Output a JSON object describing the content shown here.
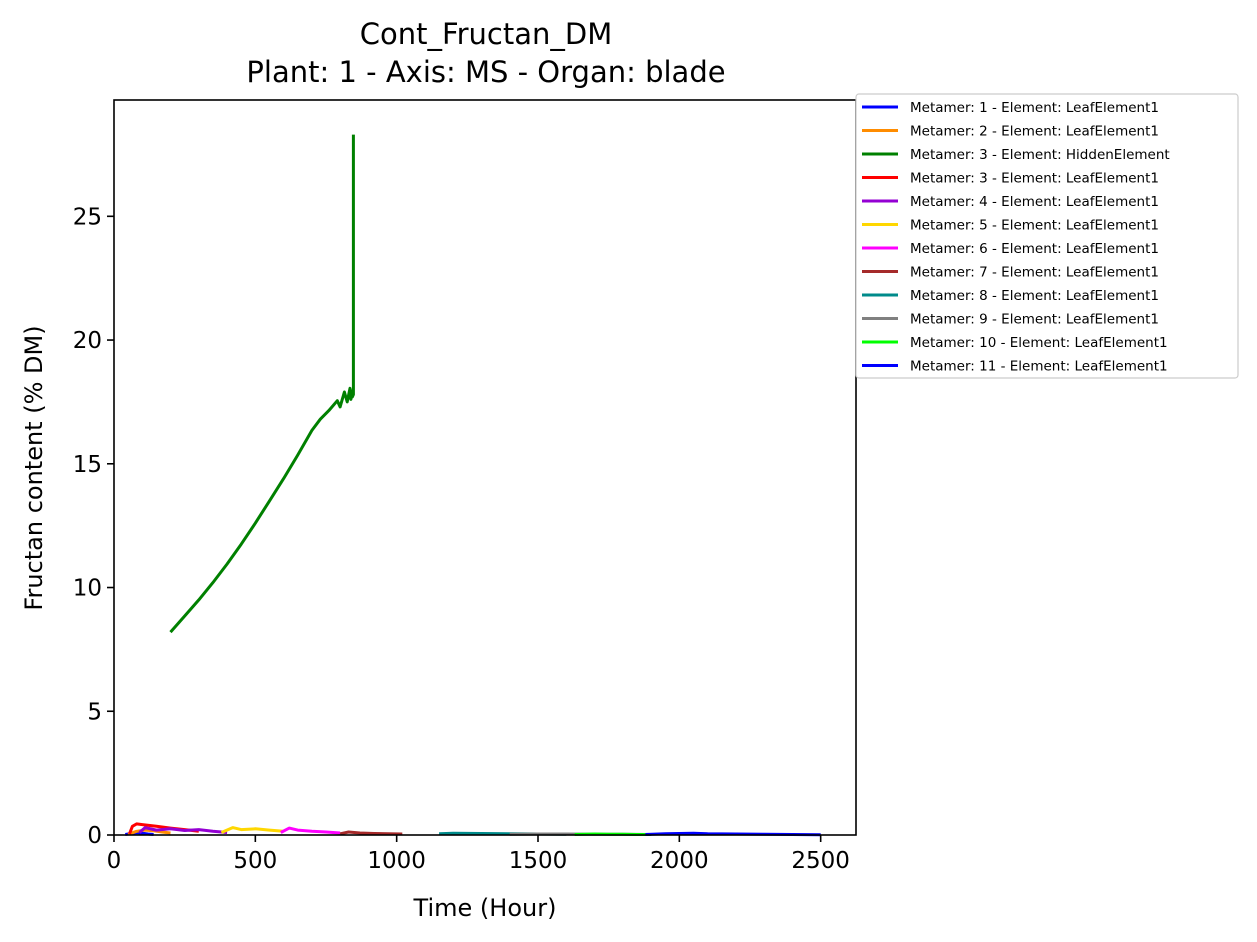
{
  "chart_data": {
    "type": "line",
    "title": "Cont_Fructan_DM",
    "subtitle": "Plant: 1 - Axis: MS - Organ: blade",
    "xlabel": "Time (Hour)",
    "ylabel": "Fructan content (% DM)",
    "xlim": [
      0,
      2625
    ],
    "ylim": [
      0,
      29.7
    ],
    "xticks": [
      0,
      500,
      1000,
      1500,
      2000,
      2500
    ],
    "yticks": [
      0,
      5,
      10,
      15,
      20,
      25
    ],
    "grid": false,
    "legend_position": "outside-right-top",
    "series": [
      {
        "name": "Metamer: 1 - Element: LeafElement1",
        "color": "#0000ff",
        "x": [
          40,
          60,
          80,
          100,
          120,
          140
        ],
        "y": [
          0.02,
          0.06,
          0.09,
          0.07,
          0.04,
          0.02
        ]
      },
      {
        "name": "Metamer: 2 - Element: LeafElement1",
        "color": "#ff8c00",
        "x": [
          50,
          80,
          110,
          140,
          170,
          200
        ],
        "y": [
          0.03,
          0.15,
          0.2,
          0.17,
          0.12,
          0.08
        ]
      },
      {
        "name": "Metamer: 3 - Element: HiddenElement",
        "color": "#008000",
        "x": [
          200,
          250,
          300,
          350,
          400,
          450,
          500,
          550,
          600,
          650,
          700,
          730,
          760,
          790,
          800,
          815,
          825,
          835,
          838,
          843,
          843,
          847,
          847
        ],
        "y": [
          8.2,
          8.85,
          9.5,
          10.2,
          10.95,
          11.75,
          12.6,
          13.5,
          14.4,
          15.35,
          16.35,
          16.8,
          17.15,
          17.55,
          17.3,
          17.9,
          17.5,
          18.05,
          17.6,
          17.95,
          17.7,
          17.8,
          28.3
        ]
      },
      {
        "name": "Metamer: 3 - Element: LeafElement1",
        "color": "#ff0000",
        "x": [
          55,
          65,
          80,
          100,
          150,
          200,
          250,
          300
        ],
        "y": [
          0.05,
          0.35,
          0.45,
          0.42,
          0.35,
          0.28,
          0.22,
          0.15
        ]
      },
      {
        "name": "Metamer: 4 - Element: LeafElement1",
        "color": "#9400d3",
        "x": [
          90,
          110,
          150,
          200,
          250,
          300,
          350,
          400
        ],
        "y": [
          0.1,
          0.3,
          0.2,
          0.25,
          0.18,
          0.22,
          0.15,
          0.1
        ]
      },
      {
        "name": "Metamer: 5 - Element: LeafElement1",
        "color": "#ffd700",
        "x": [
          380,
          420,
          450,
          500,
          550,
          600
        ],
        "y": [
          0.1,
          0.3,
          0.22,
          0.25,
          0.2,
          0.15
        ]
      },
      {
        "name": "Metamer: 6 - Element: LeafElement1",
        "color": "#ff00ff",
        "x": [
          590,
          620,
          650,
          700,
          750,
          800
        ],
        "y": [
          0.1,
          0.28,
          0.2,
          0.15,
          0.12,
          0.08
        ]
      },
      {
        "name": "Metamer: 7 - Element: LeafElement1",
        "color": "#a52a2a",
        "x": [
          800,
          830,
          870,
          920,
          970,
          1020
        ],
        "y": [
          0.05,
          0.12,
          0.08,
          0.06,
          0.05,
          0.04
        ]
      },
      {
        "name": "Metamer: 8 - Element: LeafElement1",
        "color": "#008b8b",
        "x": [
          1150,
          1200,
          1300,
          1400,
          1500,
          1600
        ],
        "y": [
          0.05,
          0.07,
          0.06,
          0.05,
          0.04,
          0.03
        ]
      },
      {
        "name": "Metamer: 9 - Element: LeafElement1",
        "color": "#808080",
        "x": [
          1400,
          1500,
          1600,
          1700,
          1800,
          1900
        ],
        "y": [
          0.03,
          0.04,
          0.04,
          0.03,
          0.03,
          0.02
        ]
      },
      {
        "name": "Metamer: 10 - Element: LeafElement1",
        "color": "#00ff00",
        "x": [
          1630,
          1700,
          1750,
          1800,
          1850,
          1900
        ],
        "y": [
          0.02,
          0.04,
          0.03,
          0.03,
          0.02,
          0.02
        ]
      },
      {
        "name": "Metamer: 11 - Element: LeafElement1",
        "color": "#0000ff",
        "x": [
          1880,
          1950,
          2000,
          2050,
          2100,
          2200,
          2300,
          2400,
          2500
        ],
        "y": [
          0.02,
          0.05,
          0.06,
          0.07,
          0.05,
          0.04,
          0.03,
          0.02,
          0.01
        ]
      }
    ]
  }
}
